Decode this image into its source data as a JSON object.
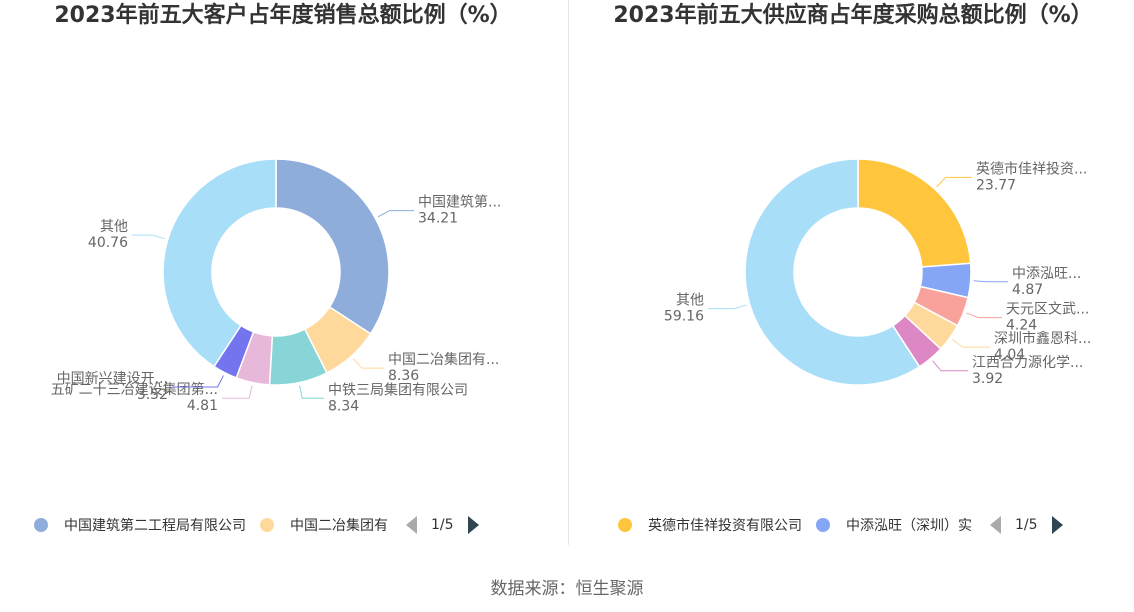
{
  "source": "数据来源：恒生聚源",
  "chart_data": [
    {
      "type": "pie",
      "title": "2023年前五大客户占年度销售总额比例（%）",
      "slices": [
        {
          "name": "中国建筑第二工程局有限公司",
          "label": "中国建筑第...",
          "value": 34.21,
          "value_label": "34.21",
          "color": "#8eaddb"
        },
        {
          "name": "中国二冶集团有限公司",
          "label": "中国二冶集团有...",
          "value": 8.36,
          "value_label": "8.36",
          "color": "#ffd99b"
        },
        {
          "name": "中铁三局集团有限公司",
          "label": "中铁三局集团有限公司",
          "value": 8.34,
          "value_label": "8.34",
          "color": "#87d5d7"
        },
        {
          "name": "五矿二十三冶建设集团第...",
          "label": "五矿二十三冶建设集团第...",
          "value": 4.81,
          "value_label": "4.81",
          "color": "#e8b8da"
        },
        {
          "name": "中国新兴建设开...",
          "label": "中国新兴建设开...",
          "value": 3.52,
          "value_label": "3.52",
          "color": "#7474ee"
        },
        {
          "name": "其他",
          "label": "其他",
          "value": 40.76,
          "value_label": "40.76",
          "color": "#a8def8"
        }
      ],
      "legend": {
        "items": [
          {
            "label": "中国建筑第二工程局有限公司",
            "color": "#8eaddb"
          },
          {
            "label": "中国二冶集团有",
            "color": "#ffd99b"
          }
        ],
        "page": "1/5"
      }
    },
    {
      "type": "pie",
      "title": "2023年前五大供应商占年度采购总额比例（%）",
      "slices": [
        {
          "name": "英德市佳祥投资有限公司",
          "label": "英德市佳祥投资...",
          "value": 23.77,
          "value_label": "23.77",
          "color": "#ffc53d"
        },
        {
          "name": "中添泓旺（深圳）实",
          "label": "中添泓旺...",
          "value": 4.87,
          "value_label": "4.87",
          "color": "#85a5f7"
        },
        {
          "name": "天元区文武...",
          "label": "天元区文武...",
          "value": 4.24,
          "value_label": "4.24",
          "color": "#f8a29b"
        },
        {
          "name": "深圳市鑫恩科...",
          "label": "深圳市鑫恩科...",
          "value": 4.04,
          "value_label": "4.04",
          "color": "#ffd99b"
        },
        {
          "name": "江西合力源化学...",
          "label": "江西合力源化学...",
          "value": 3.92,
          "value_label": "3.92",
          "color": "#dd88c4"
        },
        {
          "name": "其他",
          "label": "其他",
          "value": 59.16,
          "value_label": "59.16",
          "color": "#a8def8"
        }
      ],
      "legend": {
        "items": [
          {
            "label": "英德市佳祥投资有限公司",
            "color": "#ffc53d"
          },
          {
            "label": "中添泓旺（深圳）实",
            "color": "#85a5f7"
          }
        ],
        "page": "1/5"
      }
    }
  ]
}
